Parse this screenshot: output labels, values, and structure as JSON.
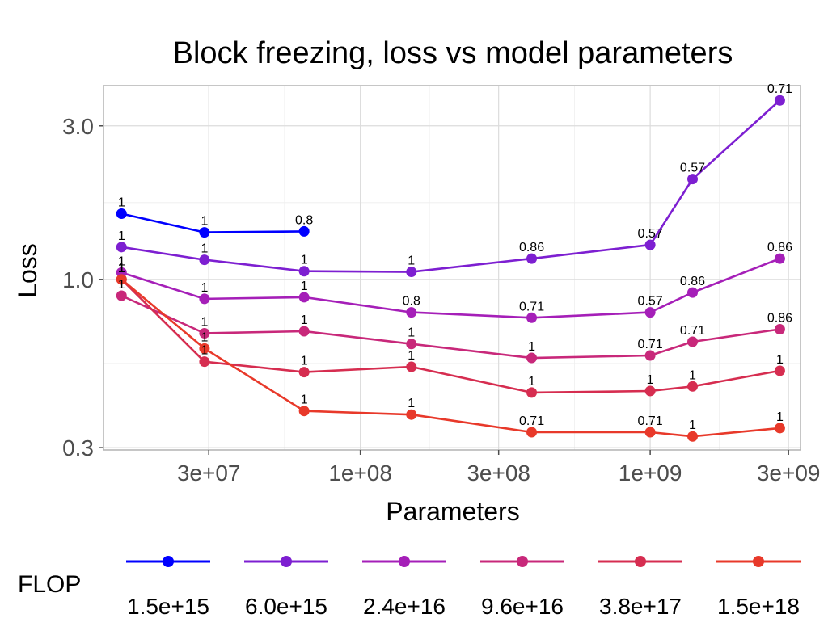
{
  "chart_data": {
    "type": "line",
    "title": "Block freezing, loss vs model parameters",
    "xlabel": "Parameters",
    "ylabel": "Loss",
    "x_scale": "log",
    "y_scale": "log",
    "xlim": [
      13000000,
      3300000000
    ],
    "ylim": [
      0.295,
      4.0
    ],
    "x_ticks": [
      {
        "value": 30000000,
        "label": "3e+07"
      },
      {
        "value": 100000000,
        "label": "1e+08"
      },
      {
        "value": 300000000,
        "label": "3e+08"
      },
      {
        "value": 1000000000,
        "label": "1e+09"
      },
      {
        "value": 3000000000,
        "label": "3e+09"
      }
    ],
    "y_ticks": [
      {
        "value": 0.3,
        "label": "0.3"
      },
      {
        "value": 1.0,
        "label": "1.0"
      },
      {
        "value": 3.0,
        "label": "3.0"
      }
    ],
    "grid": true,
    "legend": {
      "title": "FLOP",
      "position": "bottom"
    },
    "series": [
      {
        "name": "1.5e+15",
        "color": "#0000ff",
        "points": [
          {
            "x": 15000000,
            "y": 1.6,
            "label": "1"
          },
          {
            "x": 29000000,
            "y": 1.4,
            "label": "1"
          },
          {
            "x": 64000000,
            "y": 1.41,
            "label": "0.8"
          }
        ]
      },
      {
        "name": "6.0e+15",
        "color": "#7d1fd1",
        "points": [
          {
            "x": 15000000,
            "y": 1.26,
            "label": "1"
          },
          {
            "x": 29000000,
            "y": 1.15,
            "label": "1"
          },
          {
            "x": 64000000,
            "y": 1.06,
            "label": "1"
          },
          {
            "x": 150000000,
            "y": 1.055,
            "label": "1"
          },
          {
            "x": 390000000,
            "y": 1.16,
            "label": "0.86"
          },
          {
            "x": 1000000000,
            "y": 1.28,
            "label": "0.57"
          },
          {
            "x": 1400000000,
            "y": 2.05,
            "label": "0.57"
          },
          {
            "x": 2800000000,
            "y": 3.6,
            "label": "0.71"
          }
        ]
      },
      {
        "name": "2.4e+16",
        "color": "#a51fb8",
        "points": [
          {
            "x": 15000000,
            "y": 1.05,
            "label": "1"
          },
          {
            "x": 29000000,
            "y": 0.87,
            "label": "1"
          },
          {
            "x": 64000000,
            "y": 0.88,
            "label": "1"
          },
          {
            "x": 150000000,
            "y": 0.79,
            "label": "0.8"
          },
          {
            "x": 390000000,
            "y": 0.76,
            "label": "0.71"
          },
          {
            "x": 1000000000,
            "y": 0.79,
            "label": "0.57"
          },
          {
            "x": 1400000000,
            "y": 0.91,
            "label": "0.86"
          },
          {
            "x": 2800000000,
            "y": 1.16,
            "label": "0.86"
          }
        ]
      },
      {
        "name": "9.6e+16",
        "color": "#c8287a",
        "points": [
          {
            "x": 15000000,
            "y": 0.89,
            "label": "1"
          },
          {
            "x": 29000000,
            "y": 0.68,
            "label": "1"
          },
          {
            "x": 64000000,
            "y": 0.69,
            "label": "1"
          },
          {
            "x": 150000000,
            "y": 0.63,
            "label": "1"
          },
          {
            "x": 390000000,
            "y": 0.57,
            "label": "1"
          },
          {
            "x": 1000000000,
            "y": 0.58,
            "label": "0.71"
          },
          {
            "x": 1400000000,
            "y": 0.64,
            "label": "0.71"
          },
          {
            "x": 2800000000,
            "y": 0.7,
            "label": "0.86"
          }
        ]
      },
      {
        "name": "3.8e+17",
        "color": "#d62d50",
        "points": [
          {
            "x": 15000000,
            "y": 1.0,
            "label": "1"
          },
          {
            "x": 29000000,
            "y": 0.555,
            "label": "1"
          },
          {
            "x": 64000000,
            "y": 0.515,
            "label": "1"
          },
          {
            "x": 150000000,
            "y": 0.535,
            "label": "1"
          },
          {
            "x": 390000000,
            "y": 0.445,
            "label": "1"
          },
          {
            "x": 1000000000,
            "y": 0.45,
            "label": "1"
          },
          {
            "x": 1400000000,
            "y": 0.465,
            "label": "1"
          },
          {
            "x": 2800000000,
            "y": 0.52,
            "label": "1"
          }
        ]
      },
      {
        "name": "1.5e+18",
        "color": "#e8392a",
        "points": [
          {
            "x": 15000000,
            "y": 1.0,
            "label": "1"
          },
          {
            "x": 29000000,
            "y": 0.61,
            "label": "1"
          },
          {
            "x": 64000000,
            "y": 0.39,
            "label": "1"
          },
          {
            "x": 150000000,
            "y": 0.38,
            "label": "1"
          },
          {
            "x": 390000000,
            "y": 0.335,
            "label": "0.71"
          },
          {
            "x": 1000000000,
            "y": 0.335,
            "label": "0.71"
          },
          {
            "x": 1400000000,
            "y": 0.325,
            "label": "1"
          },
          {
            "x": 2800000000,
            "y": 0.345,
            "label": "1"
          }
        ]
      }
    ]
  }
}
